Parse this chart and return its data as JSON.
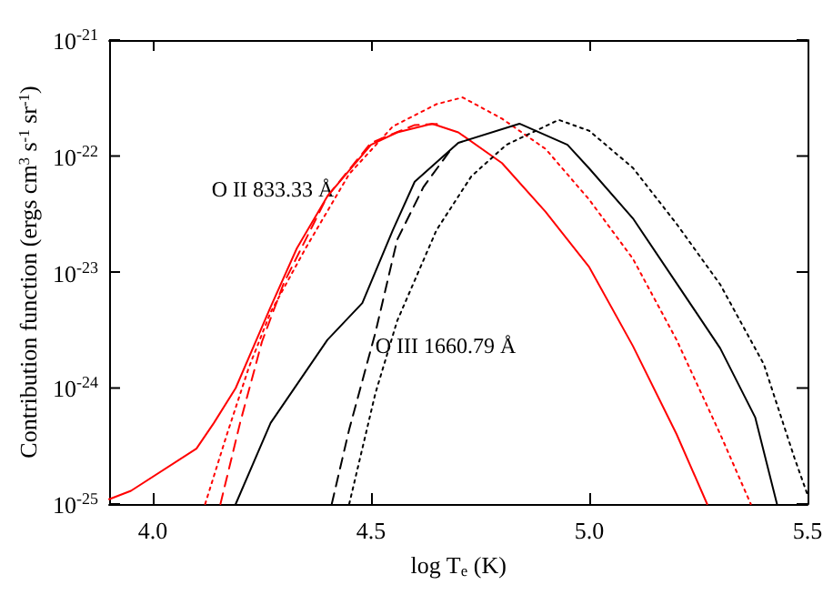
{
  "chart_data": {
    "type": "line",
    "xlabel": "log T$_{e}$ (K)",
    "ylabel": "Contribution function (ergs cm$^{3}$ s$^{-1}$ sr$^{-1}$)",
    "log": "y",
    "grid": false,
    "marker": "none",
    "xlim": [
      3.9,
      5.5
    ],
    "xticks": [
      {
        "value": 4,
        "label": "4.0"
      },
      {
        "value": 4.5,
        "label": "4.5"
      },
      {
        "value": 5,
        "label": "5.0"
      },
      {
        "value": 5.5,
        "label": "5.5"
      }
    ],
    "ylim": [
      1e-25,
      1e-21
    ],
    "yticks": [
      {
        "value": 1e-25,
        "label": "10$^{-25}$"
      },
      {
        "value": 1e-24,
        "label": "10$^{-24}$"
      },
      {
        "value": 1e-23,
        "label": "10$^{-23}$"
      },
      {
        "value": 1e-22,
        "label": "10$^{-22}$"
      },
      {
        "value": 1e-21,
        "label": "10$^{-21}$"
      }
    ],
    "annotations": [
      "O II 833.33 Å",
      "O III 1660.79 Å"
    ],
    "series": [
      {
        "color": "#ff0000",
        "line_style": "solid",
        "x": [
          3.9,
          3.95,
          4.1,
          4.14,
          4.19,
          4.27,
          4.33,
          4.4,
          4.5,
          4.56,
          4.64,
          4.7,
          4.8,
          4.9,
          5.0,
          5.1,
          5.2,
          5.27
        ],
        "values": [
          1.1e-25,
          1.3e-25,
          3e-25,
          5e-25,
          1e-24,
          5e-24,
          1.6e-23,
          4.5e-23,
          1.25e-22,
          1.6e-22,
          1.9e-22,
          1.6e-22,
          8.7e-23,
          3.3e-23,
          1.1e-23,
          2.3e-24,
          4e-25,
          1e-25
        ]
      },
      {
        "color": "#ff0000",
        "line_style": "dashed",
        "x": [
          4.155,
          4.2,
          4.25,
          4.3,
          4.4,
          4.5,
          4.6,
          4.66
        ],
        "values": [
          1e-25,
          5e-25,
          2.5e-24,
          8e-24,
          4.5e-23,
          1.3e-22,
          1.85e-22,
          1.9e-22
        ]
      },
      {
        "color": "#ff0000",
        "line_style": "dotted",
        "x": [
          4.12,
          4.17,
          4.22,
          4.27,
          4.35,
          4.45,
          4.55,
          4.65,
          4.71,
          4.8,
          4.9,
          5.0,
          5.1,
          5.2,
          5.3,
          5.37
        ],
        "values": [
          1e-25,
          4e-25,
          1.5e-24,
          4.5e-24,
          1.6e-23,
          7e-23,
          1.8e-22,
          2.8e-22,
          3.2e-22,
          2.1e-22,
          1.15e-22,
          4.2e-23,
          1.3e-23,
          2.6e-24,
          4e-25,
          1e-25
        ]
      },
      {
        "color": "#000000",
        "line_style": "solid",
        "x": [
          4.19,
          4.27,
          4.4,
          4.48,
          4.55,
          4.6,
          4.7,
          4.84,
          4.95,
          5.0,
          5.1,
          5.2,
          5.3,
          5.38,
          5.43
        ],
        "values": [
          1e-25,
          5e-25,
          2.6e-24,
          5.4e-24,
          2.3e-23,
          6e-23,
          1.3e-22,
          1.9e-22,
          1.25e-22,
          7.8e-23,
          2.9e-23,
          8e-24,
          2.2e-24,
          5.6e-25,
          1e-25
        ]
      },
      {
        "color": "#000000",
        "line_style": "dashed",
        "x": [
          4.41,
          4.45,
          4.51,
          4.56,
          4.62,
          4.68
        ],
        "values": [
          1e-25,
          4.4e-25,
          3e-24,
          1.9e-23,
          5.4e-23,
          1.1e-22
        ]
      },
      {
        "color": "#000000",
        "line_style": "dotted",
        "x": [
          4.45,
          4.51,
          4.56,
          4.65,
          4.73,
          4.81,
          4.93,
          5.0,
          5.1,
          5.2,
          5.3,
          5.4,
          5.47,
          5.5
        ],
        "values": [
          1e-25,
          9e-25,
          3.8e-24,
          2.3e-23,
          6.7e-23,
          1.25e-22,
          2.05e-22,
          1.65e-22,
          7.9e-23,
          2.6e-23,
          7.8e-24,
          1.6e-24,
          2.5e-25,
          1.2e-25
        ]
      }
    ]
  }
}
